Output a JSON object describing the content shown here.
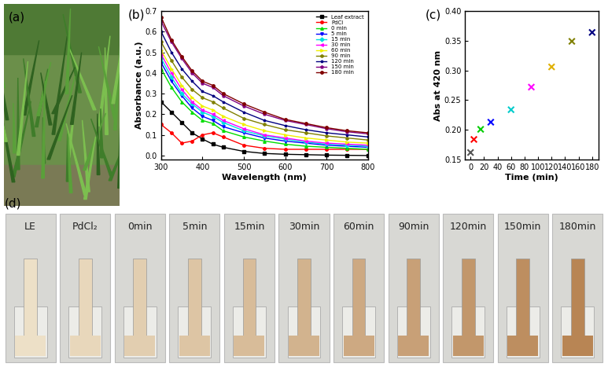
{
  "chart_data": [
    {
      "type": "line",
      "annotations": [
        "(b)"
      ],
      "x_label": "Wavelength (nm)",
      "y_label": "Absorbance (a.u.)",
      "x": [
        300,
        325,
        350,
        375,
        400,
        425,
        450,
        500,
        550,
        600,
        650,
        700,
        750,
        800
      ],
      "xlim": [
        300,
        800
      ],
      "xticks": [
        300,
        400,
        500,
        600,
        700,
        800
      ],
      "ylim": [
        -0.02,
        0.7
      ],
      "yticks": [
        0.0,
        0.1,
        0.2,
        0.3,
        0.4,
        0.5,
        0.6,
        0.7
      ],
      "legend": "upper right",
      "series": [
        {
          "name": "Leaf extract",
          "color": "#000000",
          "marker": "square",
          "values": [
            0.26,
            0.21,
            0.16,
            0.11,
            0.08,
            0.055,
            0.04,
            0.02,
            0.01,
            0.006,
            0.004,
            0.002,
            0.001,
            0.0
          ]
        },
        {
          "name": "PdCl",
          "color": "#ff0000",
          "marker": "circle",
          "values": [
            0.15,
            0.11,
            0.06,
            0.07,
            0.1,
            0.11,
            0.09,
            0.05,
            0.035,
            0.03,
            0.03,
            0.03,
            0.03,
            0.03
          ]
        },
        {
          "name": "0 min",
          "color": "#00dd00",
          "marker": "triangle_up",
          "values": [
            0.42,
            0.33,
            0.26,
            0.21,
            0.17,
            0.155,
            0.12,
            0.09,
            0.07,
            0.055,
            0.045,
            0.04,
            0.035,
            0.03
          ]
        },
        {
          "name": "5 min",
          "color": "#0000ff",
          "marker": "triangle_down",
          "values": [
            0.45,
            0.36,
            0.29,
            0.23,
            0.19,
            0.17,
            0.14,
            0.11,
            0.085,
            0.07,
            0.06,
            0.05,
            0.045,
            0.04
          ]
        },
        {
          "name": "15 min",
          "color": "#00e0e0",
          "marker": "diamond",
          "values": [
            0.47,
            0.38,
            0.3,
            0.25,
            0.21,
            0.19,
            0.16,
            0.12,
            0.095,
            0.08,
            0.065,
            0.055,
            0.05,
            0.045
          ]
        },
        {
          "name": "30 min",
          "color": "#ff00ff",
          "marker": "triangle_left",
          "values": [
            0.49,
            0.4,
            0.32,
            0.26,
            0.22,
            0.2,
            0.17,
            0.13,
            0.1,
            0.085,
            0.07,
            0.06,
            0.055,
            0.05
          ]
        },
        {
          "name": "60 min",
          "color": "#f0f000",
          "marker": "triangle_right",
          "values": [
            0.51,
            0.42,
            0.34,
            0.28,
            0.24,
            0.22,
            0.19,
            0.15,
            0.12,
            0.1,
            0.085,
            0.075,
            0.065,
            0.06
          ]
        },
        {
          "name": "90 min",
          "color": "#808000",
          "marker": "hexagon",
          "values": [
            0.55,
            0.46,
            0.38,
            0.32,
            0.28,
            0.26,
            0.23,
            0.18,
            0.15,
            0.125,
            0.11,
            0.095,
            0.085,
            0.075
          ]
        },
        {
          "name": "120 min",
          "color": "#000080",
          "marker": "star",
          "values": [
            0.6,
            0.5,
            0.42,
            0.36,
            0.31,
            0.29,
            0.26,
            0.21,
            0.17,
            0.145,
            0.125,
            0.11,
            0.1,
            0.09
          ]
        },
        {
          "name": "150 min",
          "color": "#800080",
          "marker": "pentagon",
          "values": [
            0.65,
            0.55,
            0.47,
            0.4,
            0.35,
            0.33,
            0.29,
            0.24,
            0.2,
            0.17,
            0.15,
            0.13,
            0.115,
            0.105
          ]
        },
        {
          "name": "180 min",
          "color": "#800000",
          "marker": "circle",
          "values": [
            0.67,
            0.56,
            0.48,
            0.41,
            0.36,
            0.34,
            0.3,
            0.25,
            0.21,
            0.175,
            0.155,
            0.135,
            0.12,
            0.11
          ]
        }
      ]
    },
    {
      "type": "scatter",
      "annotations": [
        "(c)"
      ],
      "x_label": "Time (min)",
      "y_label": "Abs at 420 nm",
      "x": [
        0,
        5,
        15,
        30,
        60,
        90,
        120,
        150,
        180
      ],
      "values": [
        0.162,
        0.184,
        0.201,
        0.213,
        0.234,
        0.272,
        0.306,
        0.349,
        0.364
      ],
      "colors": [
        "#555555",
        "#ff0000",
        "#00cc00",
        "#0000ff",
        "#00cccc",
        "#ff00ff",
        "#e0b000",
        "#808000",
        "#000080"
      ],
      "marker": "x",
      "xlim": [
        -8,
        190
      ],
      "xticks": [
        0,
        20,
        40,
        60,
        80,
        100,
        120,
        140,
        160,
        180
      ],
      "ylim": [
        0.15,
        0.4
      ],
      "yticks": [
        0.15,
        {
          "value": 0.2,
          "label": "0.20"
        },
        0.25,
        {
          "value": 0.3,
          "label": "0.30"
        },
        0.35,
        {
          "value": 0.4,
          "label": "0.40"
        }
      ]
    }
  ],
  "photos": [
    {
      "panel": "(a)"
    },
    {
      "panel": "(d)",
      "labels": [
        "LE",
        "PdCl₂",
        "0min",
        "5min",
        "15min",
        "30min",
        "60min",
        "90min",
        "120min",
        "150min",
        "180min"
      ]
    }
  ]
}
